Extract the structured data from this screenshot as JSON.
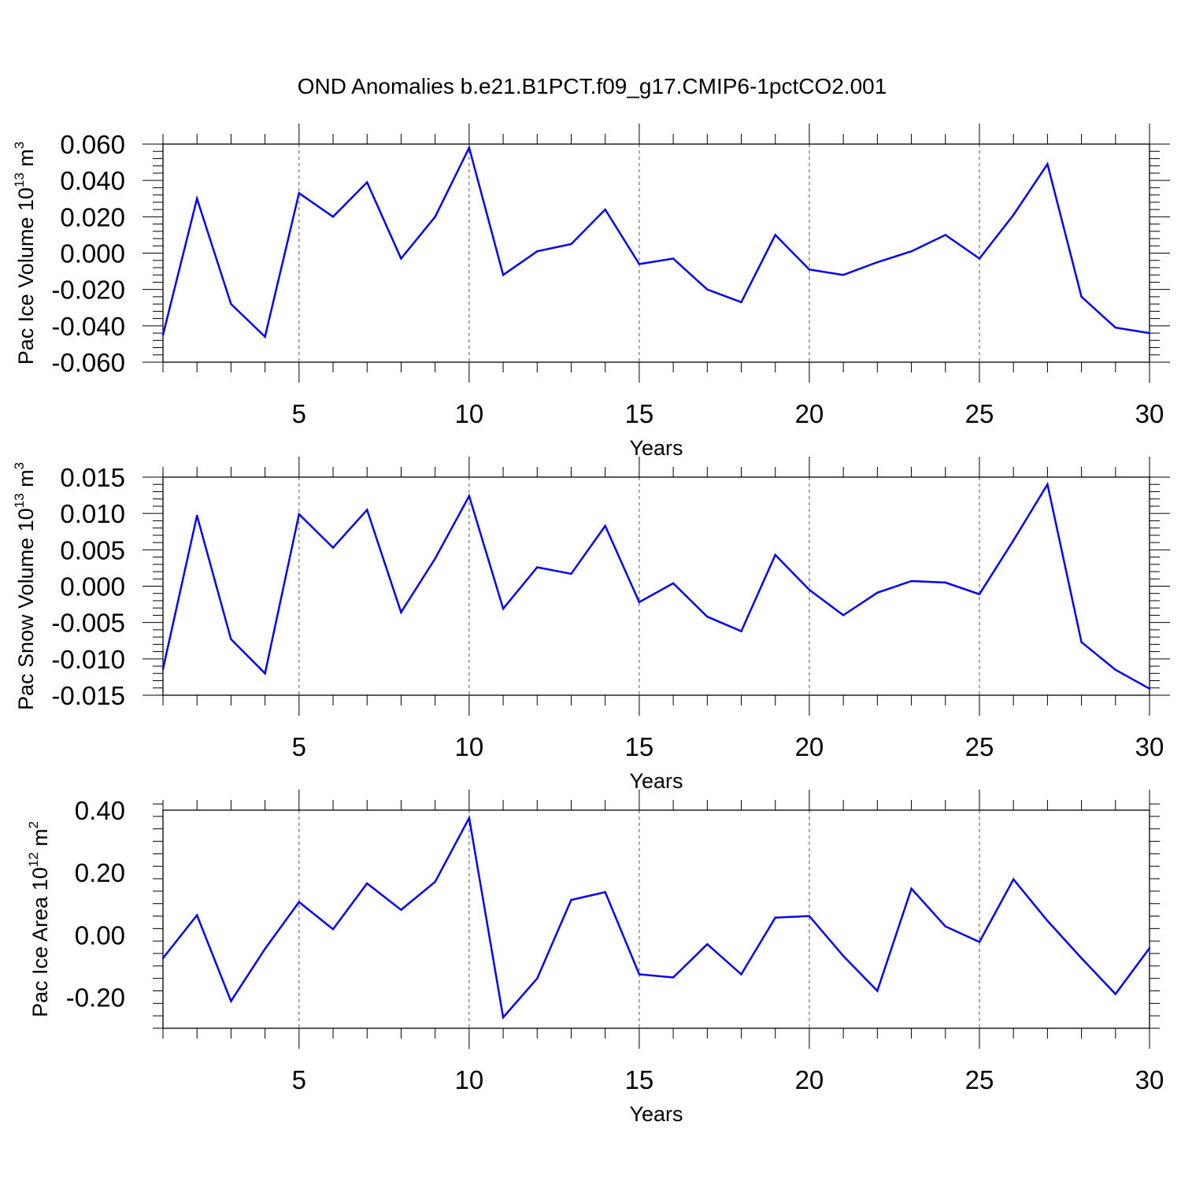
{
  "figure": {
    "title": "OND Anomalies b.e21.B1PCT.f09_g17.CMIP6-1pctCO2.001"
  },
  "chart_data": [
    {
      "type": "line",
      "title": "",
      "xlabel": "Years",
      "ylabel": "Pac Ice Volume 10",
      "ylabel_exp": "13",
      "ylabel_unit": " m",
      "ylabel_unit_exp": "3",
      "xlim": [
        1,
        30
      ],
      "ylim": [
        -0.06,
        0.06
      ],
      "xticks": [
        5,
        10,
        15,
        20,
        25,
        30
      ],
      "yticks": [
        -0.06,
        -0.04,
        -0.02,
        0.0,
        0.02,
        0.04,
        0.06
      ],
      "ytick_labels": [
        "-0.060",
        "-0.040",
        "-0.020",
        "0.000",
        "0.020",
        "0.040",
        "0.060"
      ],
      "grid": "vertical dashed at major x ticks",
      "line_color": "#0000ff",
      "x": [
        1,
        2,
        3,
        4,
        5,
        6,
        7,
        8,
        9,
        10,
        11,
        12,
        13,
        14,
        15,
        16,
        17,
        18,
        19,
        20,
        21,
        22,
        23,
        24,
        25,
        26,
        27,
        28,
        29,
        30
      ],
      "values": [
        -0.045,
        0.03,
        -0.028,
        -0.046,
        0.033,
        0.02,
        0.039,
        -0.003,
        0.02,
        0.058,
        -0.012,
        0.001,
        0.005,
        0.024,
        -0.006,
        -0.003,
        -0.02,
        -0.027,
        0.01,
        -0.009,
        -0.012,
        -0.005,
        0.001,
        0.01,
        -0.003,
        0.021,
        0.049,
        -0.024,
        -0.041,
        -0.044
      ]
    },
    {
      "type": "line",
      "title": "",
      "xlabel": "Years",
      "ylabel": "Pac Snow Volume 10",
      "ylabel_exp": "13",
      "ylabel_unit": " m",
      "ylabel_unit_exp": "3",
      "xlim": [
        1,
        30
      ],
      "ylim": [
        -0.015,
        0.015
      ],
      "xticks": [
        5,
        10,
        15,
        20,
        25,
        30
      ],
      "yticks": [
        -0.015,
        -0.01,
        -0.005,
        0.0,
        0.005,
        0.01,
        0.015
      ],
      "ytick_labels": [
        "-0.015",
        "-0.010",
        "-0.005",
        "0.000",
        "0.005",
        "0.010",
        "0.015"
      ],
      "grid": "vertical dashed at major x ticks",
      "line_color": "#0000ff",
      "x": [
        1,
        2,
        3,
        4,
        5,
        6,
        7,
        8,
        9,
        10,
        11,
        12,
        13,
        14,
        15,
        16,
        17,
        18,
        19,
        20,
        21,
        22,
        23,
        24,
        25,
        26,
        27,
        28,
        29,
        30
      ],
      "values": [
        -0.0114,
        0.0097,
        -0.0073,
        -0.012,
        0.0099,
        0.0053,
        0.0105,
        -0.0036,
        0.0038,
        0.0124,
        -0.0031,
        0.0026,
        0.0017,
        0.0083,
        -0.0022,
        0.0004,
        -0.0042,
        -0.0062,
        0.0043,
        -0.0005,
        -0.004,
        -0.0009,
        0.0007,
        0.0005,
        -0.0011,
        0.0063,
        0.014,
        -0.0077,
        -0.0115,
        -0.0141
      ]
    },
    {
      "type": "line",
      "title": "",
      "xlabel": "Years",
      "ylabel": "Pac Ice Area 10",
      "ylabel_exp": "12",
      "ylabel_unit": " m",
      "ylabel_unit_exp": "2",
      "xlim": [
        1,
        30
      ],
      "ylim": [
        -0.3,
        0.4
      ],
      "xticks": [
        5,
        10,
        15,
        20,
        25,
        30
      ],
      "yticks": [
        -0.2,
        0.0,
        0.2,
        0.4
      ],
      "ytick_labels": [
        "-0.20",
        "0.00",
        "0.20",
        "0.40"
      ],
      "grid": "vertical dashed at major x ticks",
      "line_color": "#0000ff",
      "x": [
        1,
        2,
        3,
        4,
        5,
        6,
        7,
        8,
        9,
        10,
        11,
        12,
        13,
        14,
        15,
        16,
        17,
        18,
        19,
        20,
        21,
        22,
        23,
        24,
        25,
        26,
        27,
        28,
        29,
        30
      ],
      "values": [
        -0.075,
        0.063,
        -0.213,
        -0.045,
        0.105,
        0.018,
        0.165,
        0.08,
        0.17,
        0.375,
        -0.265,
        -0.14,
        0.112,
        0.137,
        -0.127,
        -0.137,
        -0.03,
        -0.127,
        0.055,
        0.06,
        -0.068,
        -0.18,
        0.148,
        0.027,
        -0.023,
        0.178,
        0.045,
        -0.075,
        -0.19,
        -0.043
      ]
    }
  ]
}
